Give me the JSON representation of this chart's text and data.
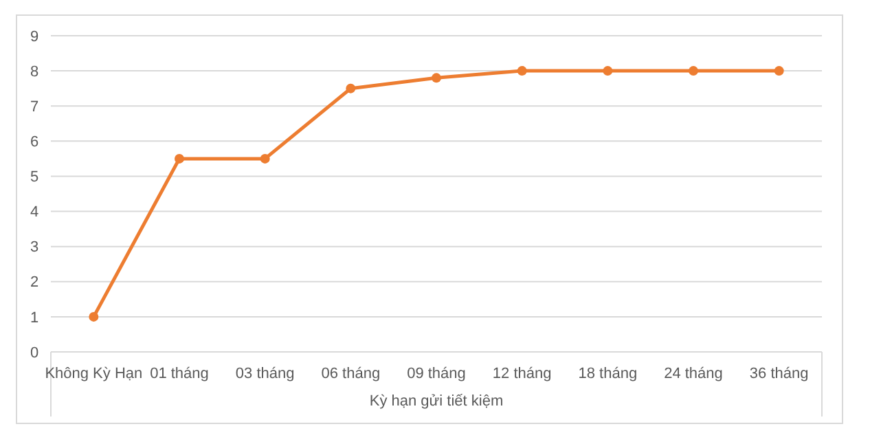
{
  "chart_data": {
    "type": "line",
    "xlabel": "Kỳ hạn gửi tiết kiệm",
    "categories": [
      "Không Kỳ Hạn",
      "01 tháng",
      "03 tháng",
      "06 tháng",
      "09 tháng",
      "12 tháng",
      "18 tháng",
      "24 tháng",
      "36 tháng"
    ],
    "series": [
      {
        "color": "#ed7d31",
        "values": [
          1,
          5.5,
          5.5,
          7.5,
          7.8,
          8,
          8,
          8,
          8
        ]
      }
    ],
    "ylim": [
      0,
      9
    ],
    "yticks": [
      0,
      1,
      2,
      3,
      4,
      5,
      6,
      7,
      8,
      9
    ],
    "grid": "y",
    "marker": "circle",
    "line_style": "solid"
  }
}
